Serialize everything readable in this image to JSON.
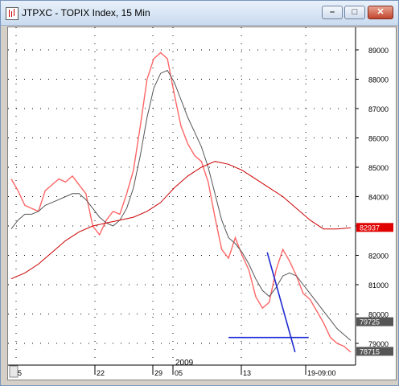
{
  "window": {
    "title": "JTPXC - TOPIX Index, 15 Min",
    "buttons": {
      "minimize": "–",
      "maximize": "□",
      "close": "✕"
    }
  },
  "chart_data": {
    "type": "line",
    "title": "JTPXC - TOPIX Index, 15 Min",
    "y_ticks": [
      "89000",
      "88000",
      "87000",
      "86000",
      "85000",
      "84000",
      "83000",
      "82000",
      "81000",
      "80000",
      "79000"
    ],
    "ylim": [
      78200,
      89900
    ],
    "x_ticks": [
      "5",
      "22",
      "29",
      "05",
      "13",
      "19-09:00"
    ],
    "year_label": "2009",
    "price_labels": [
      {
        "text": "82937",
        "value": 82937,
        "color": "#e00000"
      },
      {
        "text": "79725",
        "value": 79725,
        "color": "#ffffff"
      },
      {
        "text": "78715",
        "value": 78715,
        "color": "#ffffff"
      }
    ],
    "grid": true,
    "series": [
      {
        "color": "#ff6666",
        "x": [
          0,
          10,
          20,
          30,
          40,
          50,
          60,
          70,
          80,
          90,
          100,
          110,
          120,
          130,
          140,
          150,
          160,
          170,
          180,
          190,
          200,
          210,
          220,
          230,
          240,
          250,
          260,
          270,
          280,
          290,
          300,
          310,
          320,
          330,
          340,
          350,
          360,
          370,
          380,
          390,
          400,
          410,
          420,
          430,
          440,
          450,
          460,
          470,
          480,
          490,
          500
        ],
        "values": [
          84600,
          84200,
          83700,
          83600,
          83500,
          84200,
          84400,
          84600,
          84500,
          84700,
          84400,
          84100,
          83000,
          82700,
          83200,
          83500,
          83400,
          84100,
          84900,
          86400,
          88000,
          88700,
          88900,
          88700,
          87500,
          86400,
          85800,
          85400,
          85200,
          84500,
          83300,
          82200,
          81900,
          82600,
          82000,
          81500,
          80600,
          80200,
          80400,
          81500,
          82200,
          81800,
          81300,
          80700,
          80500,
          80100,
          79700,
          79200,
          79000,
          78900,
          78700
        ]
      },
      {
        "color": "#555555",
        "x": [
          0,
          10,
          20,
          30,
          40,
          50,
          60,
          70,
          80,
          90,
          100,
          110,
          120,
          130,
          140,
          150,
          160,
          170,
          180,
          190,
          200,
          210,
          220,
          230,
          240,
          250,
          260,
          270,
          280,
          290,
          300,
          310,
          320,
          330,
          340,
          350,
          360,
          370,
          380,
          390,
          400,
          410,
          420,
          430,
          440,
          450,
          460,
          470,
          480,
          490,
          500
        ],
        "values": [
          82900,
          83200,
          83400,
          83400,
          83500,
          83700,
          83800,
          83900,
          84000,
          84100,
          84100,
          83900,
          83600,
          83300,
          83100,
          83000,
          83200,
          83600,
          84300,
          85400,
          86700,
          87700,
          88200,
          88300,
          87900,
          87300,
          86700,
          86200,
          85700,
          85000,
          84100,
          83200,
          82600,
          82400,
          82100,
          81700,
          81200,
          80800,
          80600,
          80900,
          81300,
          81400,
          81300,
          81000,
          80700,
          80400,
          80100,
          79800,
          79500,
          79300,
          79100
        ]
      },
      {
        "color": "#cc0000",
        "x": [
          0,
          20,
          40,
          60,
          80,
          100,
          120,
          140,
          160,
          180,
          200,
          220,
          240,
          260,
          280,
          300,
          320,
          340,
          360,
          380,
          400,
          420,
          440,
          460,
          480,
          500
        ],
        "values": [
          81200,
          81400,
          81700,
          82100,
          82500,
          82800,
          83000,
          83100,
          83200,
          83300,
          83500,
          83800,
          84300,
          84700,
          85000,
          85200,
          85100,
          84900,
          84600,
          84300,
          84000,
          83600,
          83200,
          82900,
          82900,
          82937
        ]
      },
      {
        "color": "#1e2bd0",
        "x": [
          377,
          418
        ],
        "values": [
          82100,
          78700
        ]
      },
      {
        "color": "#1e2bd0",
        "x": [
          320,
          438
        ],
        "values": [
          79200,
          79200
        ]
      }
    ]
  }
}
